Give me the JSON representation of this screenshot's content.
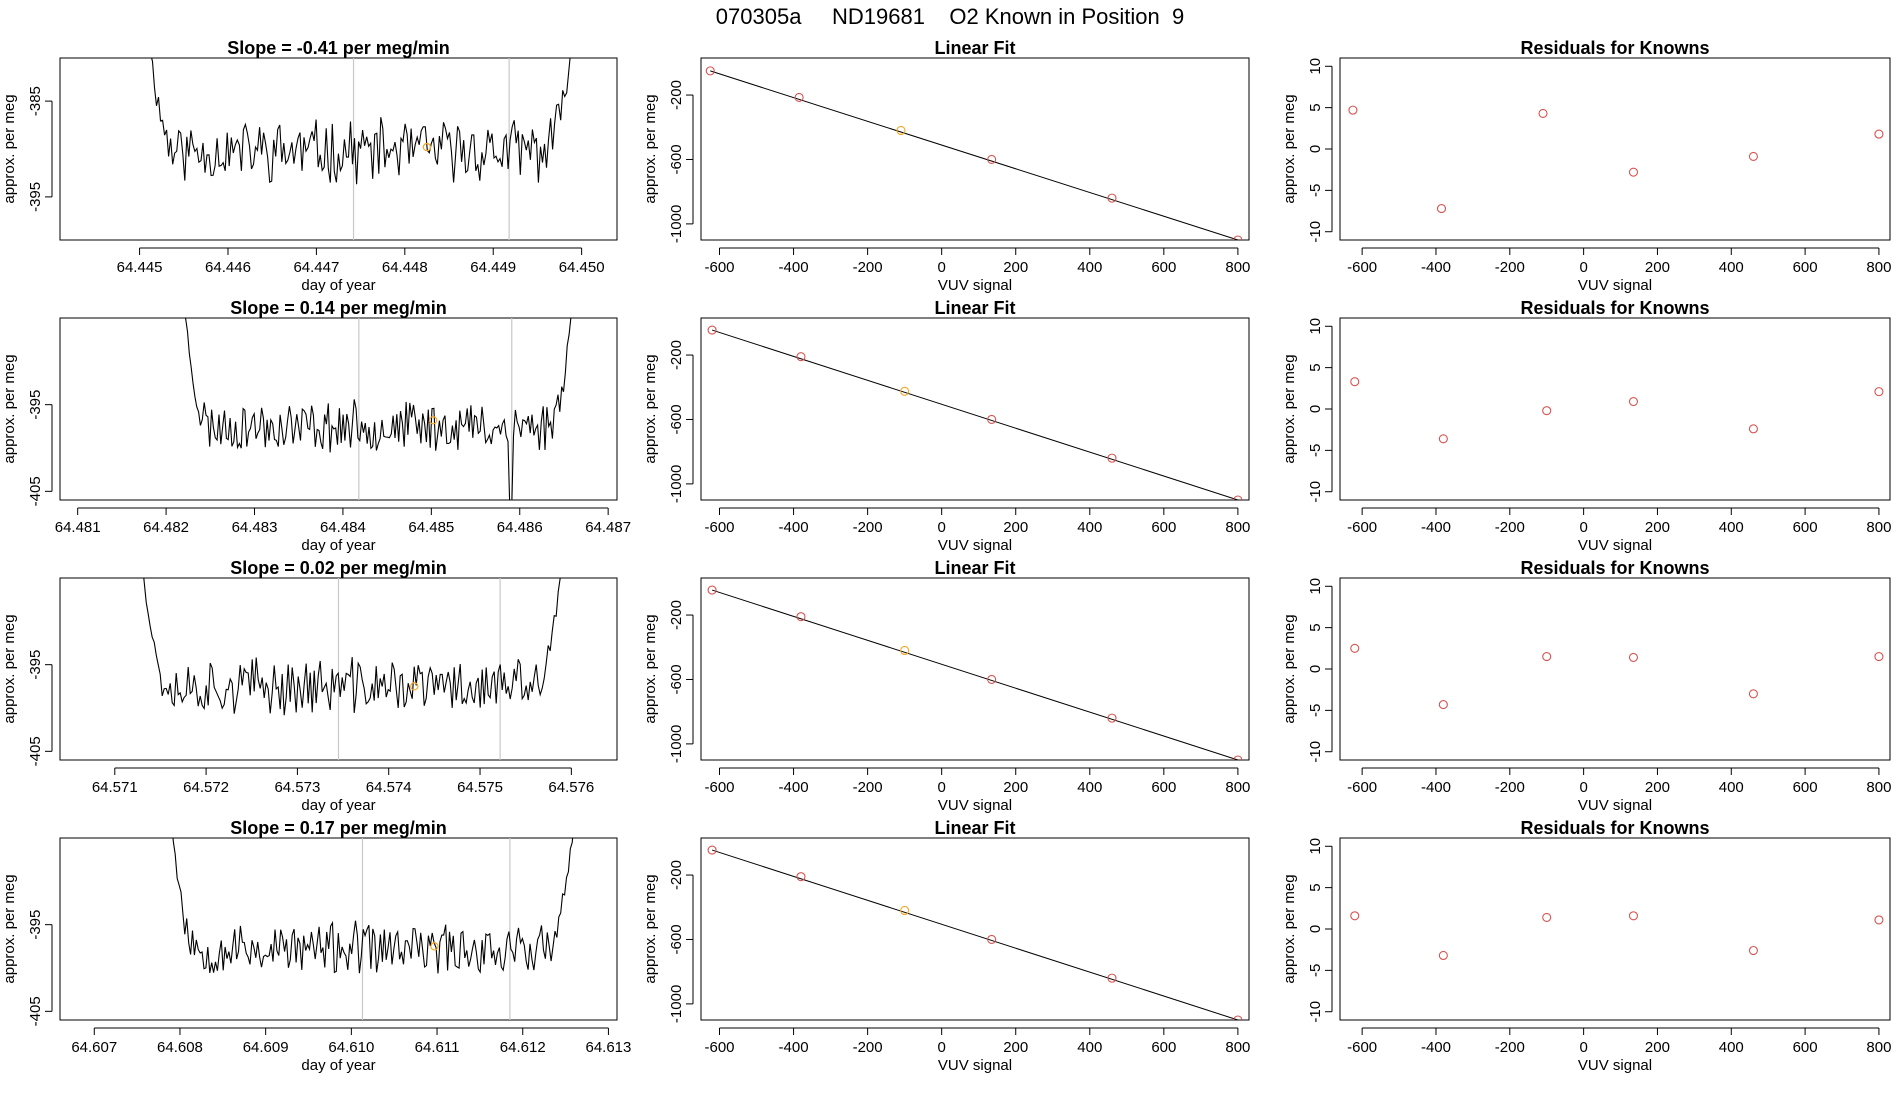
{
  "page": {
    "title": "070305a     ND19681    O2 Known in Position  9"
  },
  "colors": {
    "trace": "#000000",
    "gridline": "#c8c8c8",
    "marker_orange": "#f5a623",
    "marker_red": "#d9534f",
    "fit_line": "#000000"
  },
  "chart_data": [
    {
      "row": 1,
      "type": "line",
      "title": "Slope =  -0.41  per meg/min",
      "xlabel": "day of year",
      "ylabel": "approx. per meg",
      "xlim": [
        64.4441,
        64.4504
      ],
      "ylim": [
        -399.5,
        -380.5
      ],
      "xticks": [
        "64.445",
        "64.446",
        "64.447",
        "64.448",
        "64.449",
        "64.450"
      ],
      "yticks": [
        -385,
        -395
      ],
      "vlines": [
        64.44742,
        64.44918
      ],
      "marker": [
        64.44825,
        -389.8
      ],
      "seed": 11,
      "x_start": 64.4451,
      "x_end": 64.4499,
      "end_y_left": -378,
      "end_y_right": -378,
      "base": -390.2,
      "amp": 2.8
    },
    {
      "row": 1,
      "type": "scatter+line",
      "title": "Linear Fit",
      "xlabel": "VUV signal",
      "ylabel": "approx. per meg",
      "xlim": [
        -650,
        830
      ],
      "ylim": [
        -1100,
        30
      ],
      "xticks": [
        -600,
        -400,
        -200,
        0,
        200,
        400,
        600,
        800
      ],
      "yticks": [
        -200,
        -600,
        -1000
      ],
      "x": [
        -625,
        -385,
        -110,
        135,
        460,
        800
      ],
      "y": [
        -50,
        -215,
        -420,
        -600,
        -840,
        -1100
      ],
      "highlight_index": 2
    },
    {
      "row": 1,
      "type": "scatter",
      "title": "Residuals for Knowns",
      "xlabel": "VUV signal",
      "ylabel": "approx. per meg",
      "xlim": [
        -660,
        830
      ],
      "ylim": [
        -11,
        11
      ],
      "xticks": [
        -600,
        -400,
        -200,
        0,
        200,
        400,
        600,
        800
      ],
      "yticks": [
        10,
        5,
        0,
        -5,
        -10
      ],
      "x": [
        -625,
        -385,
        -110,
        135,
        460,
        800
      ],
      "y": [
        4.7,
        -7.2,
        4.3,
        -2.8,
        -0.9,
        1.8
      ]
    },
    {
      "row": 2,
      "type": "line",
      "title": "Slope =  0.14  per meg/min",
      "xlabel": "day of year",
      "ylabel": "approx. per meg",
      "xlim": [
        64.4808,
        64.4871
      ],
      "ylim": [
        -406,
        -385
      ],
      "xticks": [
        "64.481",
        "64.482",
        "64.483",
        "64.484",
        "64.485",
        "64.486",
        "64.487"
      ],
      "yticks": [
        -395,
        -405
      ],
      "vlines": [
        64.48418,
        64.48591
      ],
      "marker": [
        64.48502,
        -396.8
      ],
      "seed": 23,
      "x_start": 64.4822,
      "x_end": 64.4866,
      "end_y_left": -383,
      "end_y_right": -383,
      "base": -397.5,
      "amp": 2.5,
      "dip": [
        64.4859,
        -407
      ]
    },
    {
      "row": 2,
      "type": "scatter+line",
      "title": "Linear Fit",
      "xlabel": "VUV signal",
      "ylabel": "approx. per meg",
      "xlim": [
        -650,
        830
      ],
      "ylim": [
        -1100,
        30
      ],
      "xticks": [
        -600,
        -400,
        -200,
        0,
        200,
        400,
        600,
        800
      ],
      "yticks": [
        -200,
        -600,
        -1000
      ],
      "x": [
        -620,
        -380,
        -100,
        135,
        460,
        800
      ],
      "y": [
        -45,
        -210,
        -425,
        -600,
        -840,
        -1100
      ],
      "highlight_index": 2
    },
    {
      "row": 2,
      "type": "scatter",
      "title": "Residuals for Knowns",
      "xlabel": "VUV signal",
      "ylabel": "approx. per meg",
      "xlim": [
        -660,
        830
      ],
      "ylim": [
        -11,
        11
      ],
      "xticks": [
        -600,
        -400,
        -200,
        0,
        200,
        400,
        600,
        800
      ],
      "yticks": [
        10,
        5,
        0,
        -5,
        -10
      ],
      "x": [
        -620,
        -380,
        -100,
        135,
        460,
        800
      ],
      "y": [
        3.3,
        -3.6,
        -0.2,
        0.9,
        -2.4,
        2.1
      ]
    },
    {
      "row": 3,
      "type": "line",
      "title": "Slope =  0.02  per meg/min",
      "xlabel": "day of year",
      "ylabel": "approx. per meg",
      "xlim": [
        64.5704,
        64.5765
      ],
      "ylim": [
        -406,
        -385
      ],
      "xticks": [
        "64.571",
        "64.572",
        "64.573",
        "64.574",
        "64.575",
        "64.576"
      ],
      "yticks": [
        -395,
        -405
      ],
      "vlines": [
        64.57345,
        64.57522
      ],
      "marker": [
        64.57428,
        -397.5
      ],
      "seed": 37,
      "x_start": 64.5713,
      "x_end": 64.5759,
      "end_y_left": -383,
      "end_y_right": -383,
      "base": -397.5,
      "amp": 2.8
    },
    {
      "row": 3,
      "type": "scatter+line",
      "title": "Linear Fit",
      "xlabel": "VUV signal",
      "ylabel": "approx. per meg",
      "xlim": [
        -650,
        830
      ],
      "ylim": [
        -1100,
        30
      ],
      "xticks": [
        -600,
        -400,
        -200,
        0,
        200,
        400,
        600,
        800
      ],
      "yticks": [
        -200,
        -600,
        -1000
      ],
      "x": [
        -620,
        -380,
        -100,
        135,
        460,
        800
      ],
      "y": [
        -45,
        -210,
        -420,
        -600,
        -840,
        -1100
      ],
      "highlight_index": 2
    },
    {
      "row": 3,
      "type": "scatter",
      "title": "Residuals for Knowns",
      "xlabel": "VUV signal",
      "ylabel": "approx. per meg",
      "xlim": [
        -660,
        830
      ],
      "ylim": [
        -11,
        11
      ],
      "xticks": [
        -600,
        -400,
        -200,
        0,
        200,
        400,
        600,
        800
      ],
      "yticks": [
        10,
        5,
        0,
        -5,
        -10
      ],
      "x": [
        -620,
        -380,
        -100,
        135,
        460,
        800
      ],
      "y": [
        2.5,
        -4.3,
        1.5,
        1.4,
        -3.0,
        1.5
      ]
    },
    {
      "row": 4,
      "type": "line",
      "title": "Slope =  0.17  per meg/min",
      "xlabel": "day of year",
      "ylabel": "approx. per meg",
      "xlim": [
        64.6066,
        64.6131
      ],
      "ylim": [
        -406,
        -385
      ],
      "xticks": [
        "64.607",
        "64.608",
        "64.609",
        "64.610",
        "64.611",
        "64.612",
        "64.613"
      ],
      "yticks": [
        -395,
        -405
      ],
      "vlines": [
        64.61013,
        64.61185
      ],
      "marker": [
        64.61097,
        -397.5
      ],
      "seed": 53,
      "x_start": 64.6079,
      "x_end": 64.6126,
      "end_y_left": -383,
      "end_y_right": -383,
      "base": -397.8,
      "amp": 2.6
    },
    {
      "row": 4,
      "type": "scatter+line",
      "title": "Linear Fit",
      "xlabel": "VUV signal",
      "ylabel": "approx. per meg",
      "xlim": [
        -650,
        830
      ],
      "ylim": [
        -1100,
        30
      ],
      "xticks": [
        -600,
        -400,
        -200,
        0,
        200,
        400,
        600,
        800
      ],
      "yticks": [
        -200,
        -600,
        -1000
      ],
      "x": [
        -620,
        -380,
        -100,
        135,
        460,
        800
      ],
      "y": [
        -45,
        -210,
        -420,
        -600,
        -840,
        -1100
      ],
      "highlight_index": 2
    },
    {
      "row": 4,
      "type": "scatter",
      "title": "Residuals for Knowns",
      "xlabel": "VUV signal",
      "ylabel": "approx. per meg",
      "xlim": [
        -660,
        830
      ],
      "ylim": [
        -11,
        11
      ],
      "xticks": [
        -600,
        -400,
        -200,
        0,
        200,
        400,
        600,
        800
      ],
      "yticks": [
        10,
        5,
        0,
        -5,
        -10
      ],
      "x": [
        -620,
        -380,
        -100,
        135,
        460,
        800
      ],
      "y": [
        1.6,
        -3.2,
        1.4,
        1.6,
        -2.6,
        1.1
      ]
    }
  ]
}
